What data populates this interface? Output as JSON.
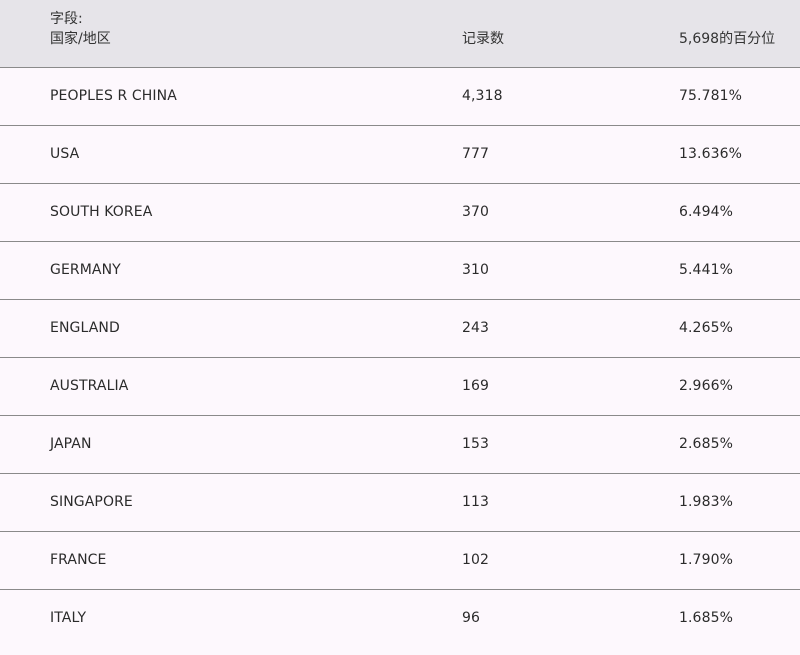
{
  "table": {
    "headers": {
      "field_label": "字段:",
      "field_name": "国家/地区",
      "record_count": "记录数",
      "percentage": "5,698的百分位"
    },
    "rows": [
      {
        "country": "PEOPLES R CHINA",
        "count": "4,318",
        "percent": "75.781%"
      },
      {
        "country": "USA",
        "count": "777",
        "percent": "13.636%"
      },
      {
        "country": "SOUTH KOREA",
        "count": "370",
        "percent": "6.494%"
      },
      {
        "country": "GERMANY",
        "count": "310",
        "percent": "5.441%"
      },
      {
        "country": "ENGLAND",
        "count": "243",
        "percent": "4.265%"
      },
      {
        "country": "AUSTRALIA",
        "count": "169",
        "percent": "2.966%"
      },
      {
        "country": "JAPAN",
        "count": "153",
        "percent": "2.685%"
      },
      {
        "country": "SINGAPORE",
        "count": "113",
        "percent": "1.983%"
      },
      {
        "country": "FRANCE",
        "count": "102",
        "percent": "1.790%"
      },
      {
        "country": "ITALY",
        "count": "96",
        "percent": "1.685%"
      }
    ]
  }
}
